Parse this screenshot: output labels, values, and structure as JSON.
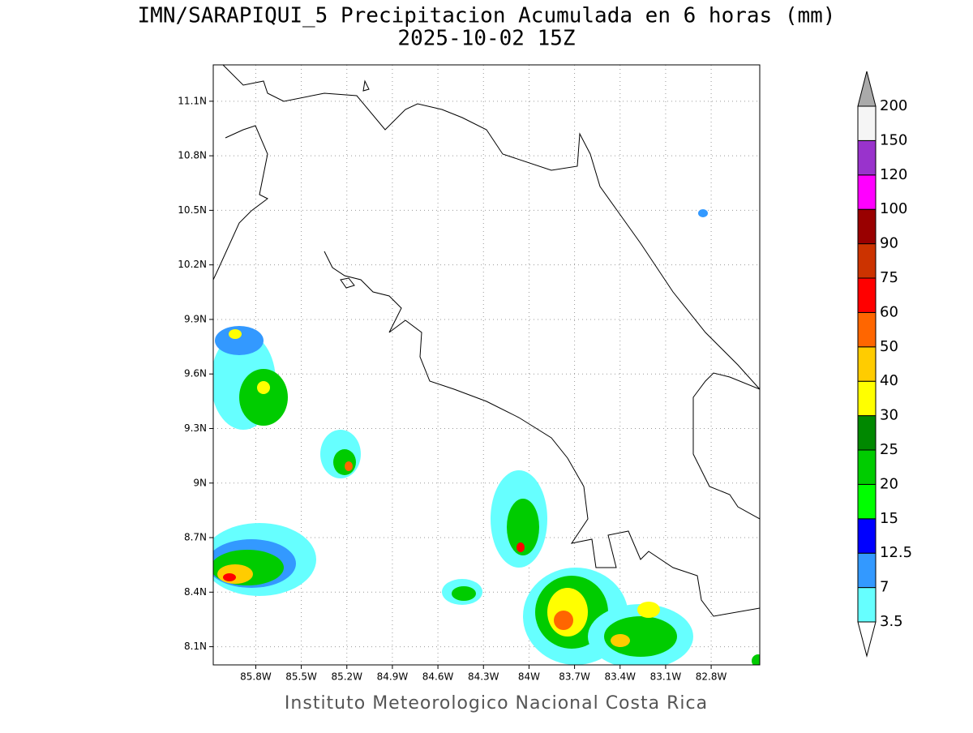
{
  "map": {
    "title": "IMN/SARAPIQUI_5 Precipitacion Acumulada en 6 horas (mm)",
    "subtitle": "2025-10-02 15Z",
    "footer": "Instituto Meteorologico Nacional Costa Rica",
    "xlim": [
      -86.08,
      -82.48
    ],
    "ylim": [
      8.0,
      11.3
    ],
    "xticks": [
      {
        "value": -85.8,
        "label": "85.8W"
      },
      {
        "value": -85.5,
        "label": "85.5W"
      },
      {
        "value": -85.2,
        "label": "85.2W"
      },
      {
        "value": -84.9,
        "label": "84.9W"
      },
      {
        "value": -84.6,
        "label": "84.6W"
      },
      {
        "value": -84.3,
        "label": "84.3W"
      },
      {
        "value": -84.0,
        "label": "84W"
      },
      {
        "value": -83.7,
        "label": "83.7W"
      },
      {
        "value": -83.4,
        "label": "83.4W"
      },
      {
        "value": -83.1,
        "label": "83.1W"
      },
      {
        "value": -82.8,
        "label": "82.8W"
      }
    ],
    "yticks": [
      {
        "value": 8.1,
        "label": "8.1N"
      },
      {
        "value": 8.4,
        "label": "8.4N"
      },
      {
        "value": 8.7,
        "label": "8.7N"
      },
      {
        "value": 9.0,
        "label": "9N"
      },
      {
        "value": 9.3,
        "label": "9.3N"
      },
      {
        "value": 9.6,
        "label": "9.6N"
      },
      {
        "value": 9.9,
        "label": "9.9N"
      },
      {
        "value": 10.2,
        "label": "10.2N"
      },
      {
        "value": 10.5,
        "label": "10.5N"
      },
      {
        "value": 10.8,
        "label": "10.8N"
      },
      {
        "value": 11.1,
        "label": "11.1N"
      }
    ],
    "grid": true,
    "colorbar": {
      "levels": [
        3.5,
        7,
        12.5,
        15,
        20,
        25,
        30,
        40,
        50,
        60,
        75,
        90,
        100,
        120,
        150,
        200
      ],
      "colors": [
        "#ffffff",
        "#66ffff",
        "#3399ff",
        "#0000ff",
        "#00ff00",
        "#00cc00",
        "#008800",
        "#ffff00",
        "#ffcc00",
        "#ff6600",
        "#ff0000",
        "#cc3300",
        "#990000",
        "#ff00ff",
        "#9933cc",
        "#f5f5f5",
        "#aaaaaa"
      ]
    }
  }
}
